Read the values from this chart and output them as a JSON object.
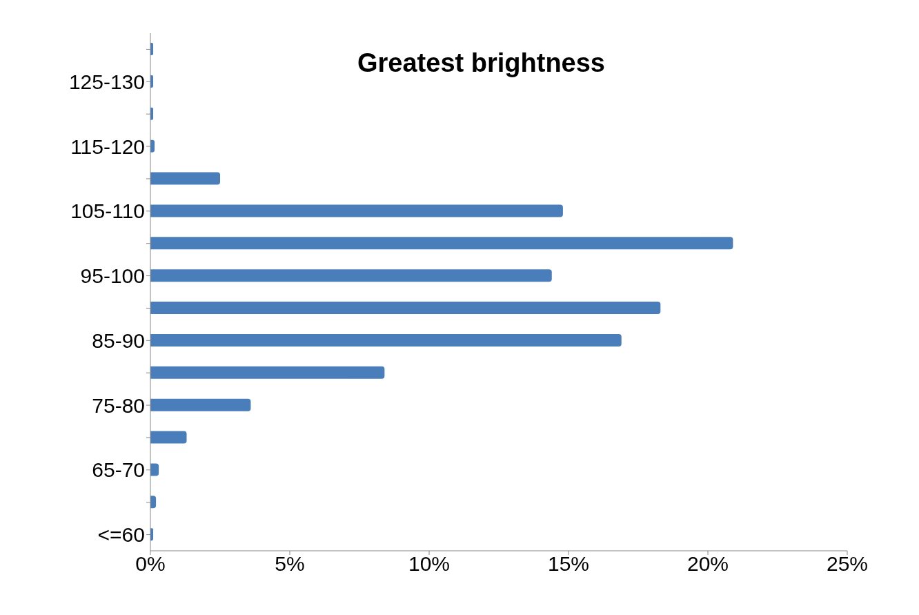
{
  "chart_data": {
    "type": "bar",
    "orientation": "horizontal",
    "title": "Greatest brightness",
    "categories": [
      null,
      "125-130",
      null,
      "115-120",
      null,
      "105-110",
      null,
      "95-100",
      null,
      "85-90",
      null,
      "75-80",
      null,
      "65-70",
      null,
      "<=60"
    ],
    "values": [
      0.1,
      0.1,
      0.1,
      0.15,
      2.5,
      14.8,
      20.9,
      14.4,
      18.3,
      16.9,
      8.4,
      3.6,
      1.3,
      0.3,
      0.2,
      0.1
    ],
    "color": "#4a7ebb",
    "xlim": [
      0,
      25
    ],
    "xticks": [
      {
        "value": 0,
        "label": "0%"
      },
      {
        "value": 5,
        "label": "5%"
      },
      {
        "value": 10,
        "label": "10%"
      },
      {
        "value": 15,
        "label": "15%"
      },
      {
        "value": 20,
        "label": "20%"
      },
      {
        "value": 25,
        "label": "25%"
      }
    ],
    "grid": false,
    "legend": false
  }
}
